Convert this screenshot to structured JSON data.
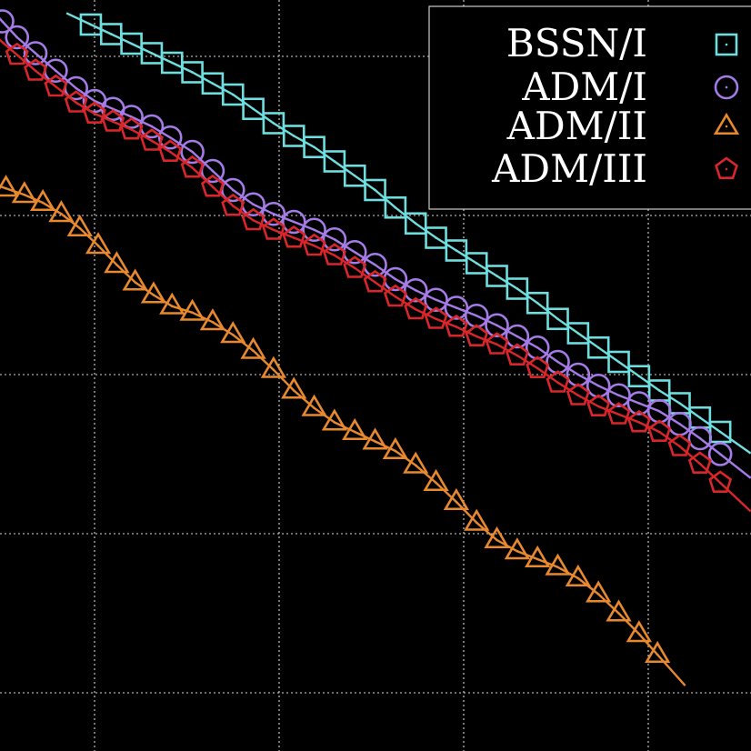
{
  "chart_data": {
    "type": "line",
    "title": "",
    "xlabel": "",
    "ylabel": "",
    "xlim": [
      -0.5,
      3.6
    ],
    "ylim": [
      -4.1,
      0.6
    ],
    "xticks": [
      0,
      1,
      2,
      3
    ],
    "yticks": [
      -4,
      -3,
      -2,
      -1,
      0
    ],
    "grid": true,
    "legend_position": "top-right",
    "series": [
      {
        "name": "BSSN/I",
        "marker": "square-dot",
        "color": "#6fdede",
        "x": [
          -0.02,
          0.09,
          0.2,
          0.31,
          0.42,
          0.53,
          0.64,
          0.75,
          0.86,
          0.97,
          1.08,
          1.19,
          1.3,
          1.41,
          1.52,
          1.63,
          1.74,
          1.85,
          1.96,
          2.07,
          2.18,
          2.29,
          2.4,
          2.51,
          2.62,
          2.73,
          2.84,
          2.95,
          3.06,
          3.17,
          3.28,
          3.39
        ],
        "y": [
          0.2,
          0.14,
          0.08,
          0.02,
          -0.04,
          -0.1,
          -0.17,
          -0.24,
          -0.33,
          -0.42,
          -0.5,
          -0.57,
          -0.66,
          -0.75,
          -0.84,
          -0.95,
          -1.05,
          -1.14,
          -1.22,
          -1.3,
          -1.38,
          -1.46,
          -1.55,
          -1.65,
          -1.74,
          -1.83,
          -1.92,
          -2.01,
          -2.1,
          -2.18,
          -2.27,
          -2.36
        ]
      },
      {
        "name": "ADM/I",
        "marker": "circle-dot",
        "color": "#a57be8",
        "x": [
          -0.5,
          -0.42,
          -0.32,
          -0.21,
          -0.1,
          0.0,
          0.1,
          0.2,
          0.31,
          0.41,
          0.53,
          0.64,
          0.75,
          0.86,
          0.97,
          1.08,
          1.19,
          1.3,
          1.41,
          1.52,
          1.63,
          1.74,
          1.85,
          1.96,
          2.07,
          2.18,
          2.29,
          2.4,
          2.51,
          2.62,
          2.73,
          2.84,
          2.95,
          3.06,
          3.17,
          3.28,
          3.39
        ],
        "y": [
          0.22,
          0.12,
          0.02,
          -0.09,
          -0.2,
          -0.28,
          -0.33,
          -0.38,
          -0.44,
          -0.51,
          -0.6,
          -0.72,
          -0.84,
          -0.93,
          -0.99,
          -1.04,
          -1.09,
          -1.15,
          -1.23,
          -1.31,
          -1.4,
          -1.47,
          -1.53,
          -1.58,
          -1.63,
          -1.69,
          -1.76,
          -1.83,
          -1.92,
          -2.0,
          -2.07,
          -2.13,
          -2.18,
          -2.23,
          -2.31,
          -2.4,
          -2.5
        ]
      },
      {
        "name": "ADM/II",
        "marker": "triangle-dot",
        "color": "#e8892f",
        "x": [
          -0.48,
          -0.38,
          -0.28,
          -0.18,
          -0.08,
          0.02,
          0.12,
          0.22,
          0.32,
          0.42,
          0.53,
          0.64,
          0.75,
          0.86,
          0.97,
          1.08,
          1.19,
          1.3,
          1.41,
          1.52,
          1.63,
          1.74,
          1.85,
          1.96,
          2.07,
          2.18,
          2.29,
          2.4,
          2.51,
          2.62,
          2.73,
          2.84,
          2.95,
          3.05
        ],
        "y": [
          -0.83,
          -0.87,
          -0.92,
          -0.99,
          -1.08,
          -1.19,
          -1.31,
          -1.42,
          -1.5,
          -1.57,
          -1.61,
          -1.67,
          -1.75,
          -1.85,
          -1.97,
          -2.1,
          -2.21,
          -2.3,
          -2.36,
          -2.42,
          -2.48,
          -2.57,
          -2.68,
          -2.8,
          -2.93,
          -3.04,
          -3.11,
          -3.16,
          -3.21,
          -3.28,
          -3.38,
          -3.5,
          -3.63,
          -3.76
        ]
      },
      {
        "name": "ADM/III",
        "marker": "pentagon-dot",
        "color": "#d9262a",
        "x": [
          -0.42,
          -0.32,
          -0.21,
          -0.1,
          0.0,
          0.1,
          0.2,
          0.31,
          0.41,
          0.53,
          0.64,
          0.75,
          0.86,
          0.97,
          1.08,
          1.19,
          1.3,
          1.41,
          1.52,
          1.63,
          1.74,
          1.85,
          1.96,
          2.07,
          2.18,
          2.29,
          2.4,
          2.51,
          2.62,
          2.73,
          2.84,
          2.95,
          3.06,
          3.17,
          3.28,
          3.39
        ],
        "y": [
          0.01,
          -0.09,
          -0.19,
          -0.29,
          -0.36,
          -0.41,
          -0.46,
          -0.53,
          -0.6,
          -0.7,
          -0.82,
          -0.94,
          -1.03,
          -1.09,
          -1.14,
          -1.19,
          -1.25,
          -1.33,
          -1.42,
          -1.51,
          -1.59,
          -1.65,
          -1.7,
          -1.76,
          -1.81,
          -1.88,
          -1.96,
          -2.05,
          -2.13,
          -2.2,
          -2.25,
          -2.3,
          -2.36,
          -2.45,
          -2.56,
          -2.68
        ]
      }
    ]
  }
}
